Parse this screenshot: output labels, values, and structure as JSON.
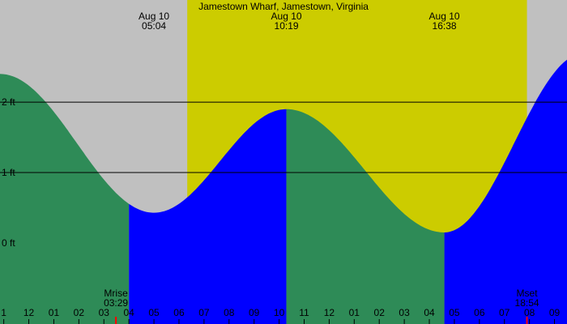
{
  "chart_data": {
    "type": "area",
    "title": "Jamestown Wharf, Jamestown, Virginia",
    "x_unit": "hour",
    "x_range": [
      0.85,
      23.5
    ],
    "y_unit": "ft",
    "ylim": [
      -1.15,
      3.45
    ],
    "y_ticks": [
      {
        "value": 0,
        "label": "0 ft"
      },
      {
        "value": 1,
        "label": "1 ft"
      },
      {
        "value": 2,
        "label": "2 ft"
      }
    ],
    "x_tick_labels": [
      {
        "hour": 1,
        "label": "1"
      },
      {
        "hour": 2,
        "label": "12"
      },
      {
        "hour": 3,
        "label": "01"
      },
      {
        "hour": 4,
        "label": "02"
      },
      {
        "hour": 5,
        "label": "03"
      },
      {
        "hour": 6,
        "label": "04"
      },
      {
        "hour": 7,
        "label": "05"
      },
      {
        "hour": 8,
        "label": "06"
      },
      {
        "hour": 9,
        "label": "07"
      },
      {
        "hour": 10,
        "label": "08"
      },
      {
        "hour": 11,
        "label": "09"
      },
      {
        "hour": 12,
        "label": "10"
      },
      {
        "hour": 13,
        "label": "11"
      },
      {
        "hour": 14,
        "label": "12"
      },
      {
        "hour": 15,
        "label": "01"
      },
      {
        "hour": 16,
        "label": "02"
      },
      {
        "hour": 17,
        "label": "03"
      },
      {
        "hour": 18,
        "label": "04"
      },
      {
        "hour": 19,
        "label": "05"
      },
      {
        "hour": 20,
        "label": "06"
      },
      {
        "hour": 21,
        "label": "07"
      },
      {
        "hour": 22,
        "label": "08"
      },
      {
        "hour": 23,
        "label": "09"
      }
    ],
    "sunrise_hour": 8.33,
    "sunset_hour": 21.9,
    "tide_curve": [
      {
        "hour": 0.85,
        "ft": 2.4
      },
      {
        "hour": 7.0,
        "ft": 0.43
      },
      {
        "hour": 12.29,
        "ft": 1.9
      },
      {
        "hour": 18.6,
        "ft": 0.15
      },
      {
        "hour": 24.2,
        "ft": 2.7
      }
    ],
    "tide_labels": [
      {
        "hour": 7.0,
        "date": "Aug 10",
        "time": "05:04"
      },
      {
        "hour": 12.29,
        "date": "Aug 10",
        "time": "10:19"
      },
      {
        "hour": 18.6,
        "date": "Aug 10",
        "time": "16:38"
      }
    ],
    "moon_events": [
      {
        "hour": 5.48,
        "name": "Mrise",
        "time": "03:29"
      },
      {
        "hour": 21.9,
        "name": "Mset",
        "time": "18:54"
      }
    ],
    "phase_boundaries_hours": [
      6.0,
      12.29,
      18.6
    ],
    "colors": {
      "night": "#c0c0c0",
      "day": "#cccc00",
      "falling": "#2e8b57",
      "rising": "#0000ff",
      "moon_tick": "#ff0000"
    }
  }
}
